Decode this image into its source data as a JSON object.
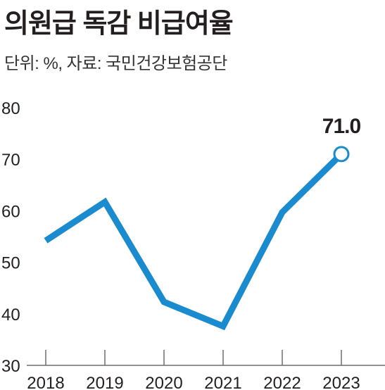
{
  "title": "의원급 독감 비급여율",
  "subtitle": "단위: %, 자료: 국민건강보험공단",
  "chart_data": {
    "type": "line",
    "title": "의원급 독감 비급여율",
    "subtitle": "단위: %, 자료: 국민건강보험공단",
    "xlabel": "",
    "ylabel": "",
    "categories": [
      "2018",
      "2019",
      "2020",
      "2021",
      "2022",
      "2023"
    ],
    "series": [
      {
        "values": [
          54.2,
          61.7,
          42.3,
          37.6,
          59.7,
          71.0
        ],
        "color": "#1a8bcf"
      }
    ],
    "ylim": [
      30,
      80
    ],
    "yticks": [
      "30",
      "40",
      "50",
      "60",
      "70",
      "80"
    ],
    "annotations": [
      {
        "category": "2023",
        "text": "71.0"
      }
    ],
    "grid": false,
    "legend": "none"
  }
}
